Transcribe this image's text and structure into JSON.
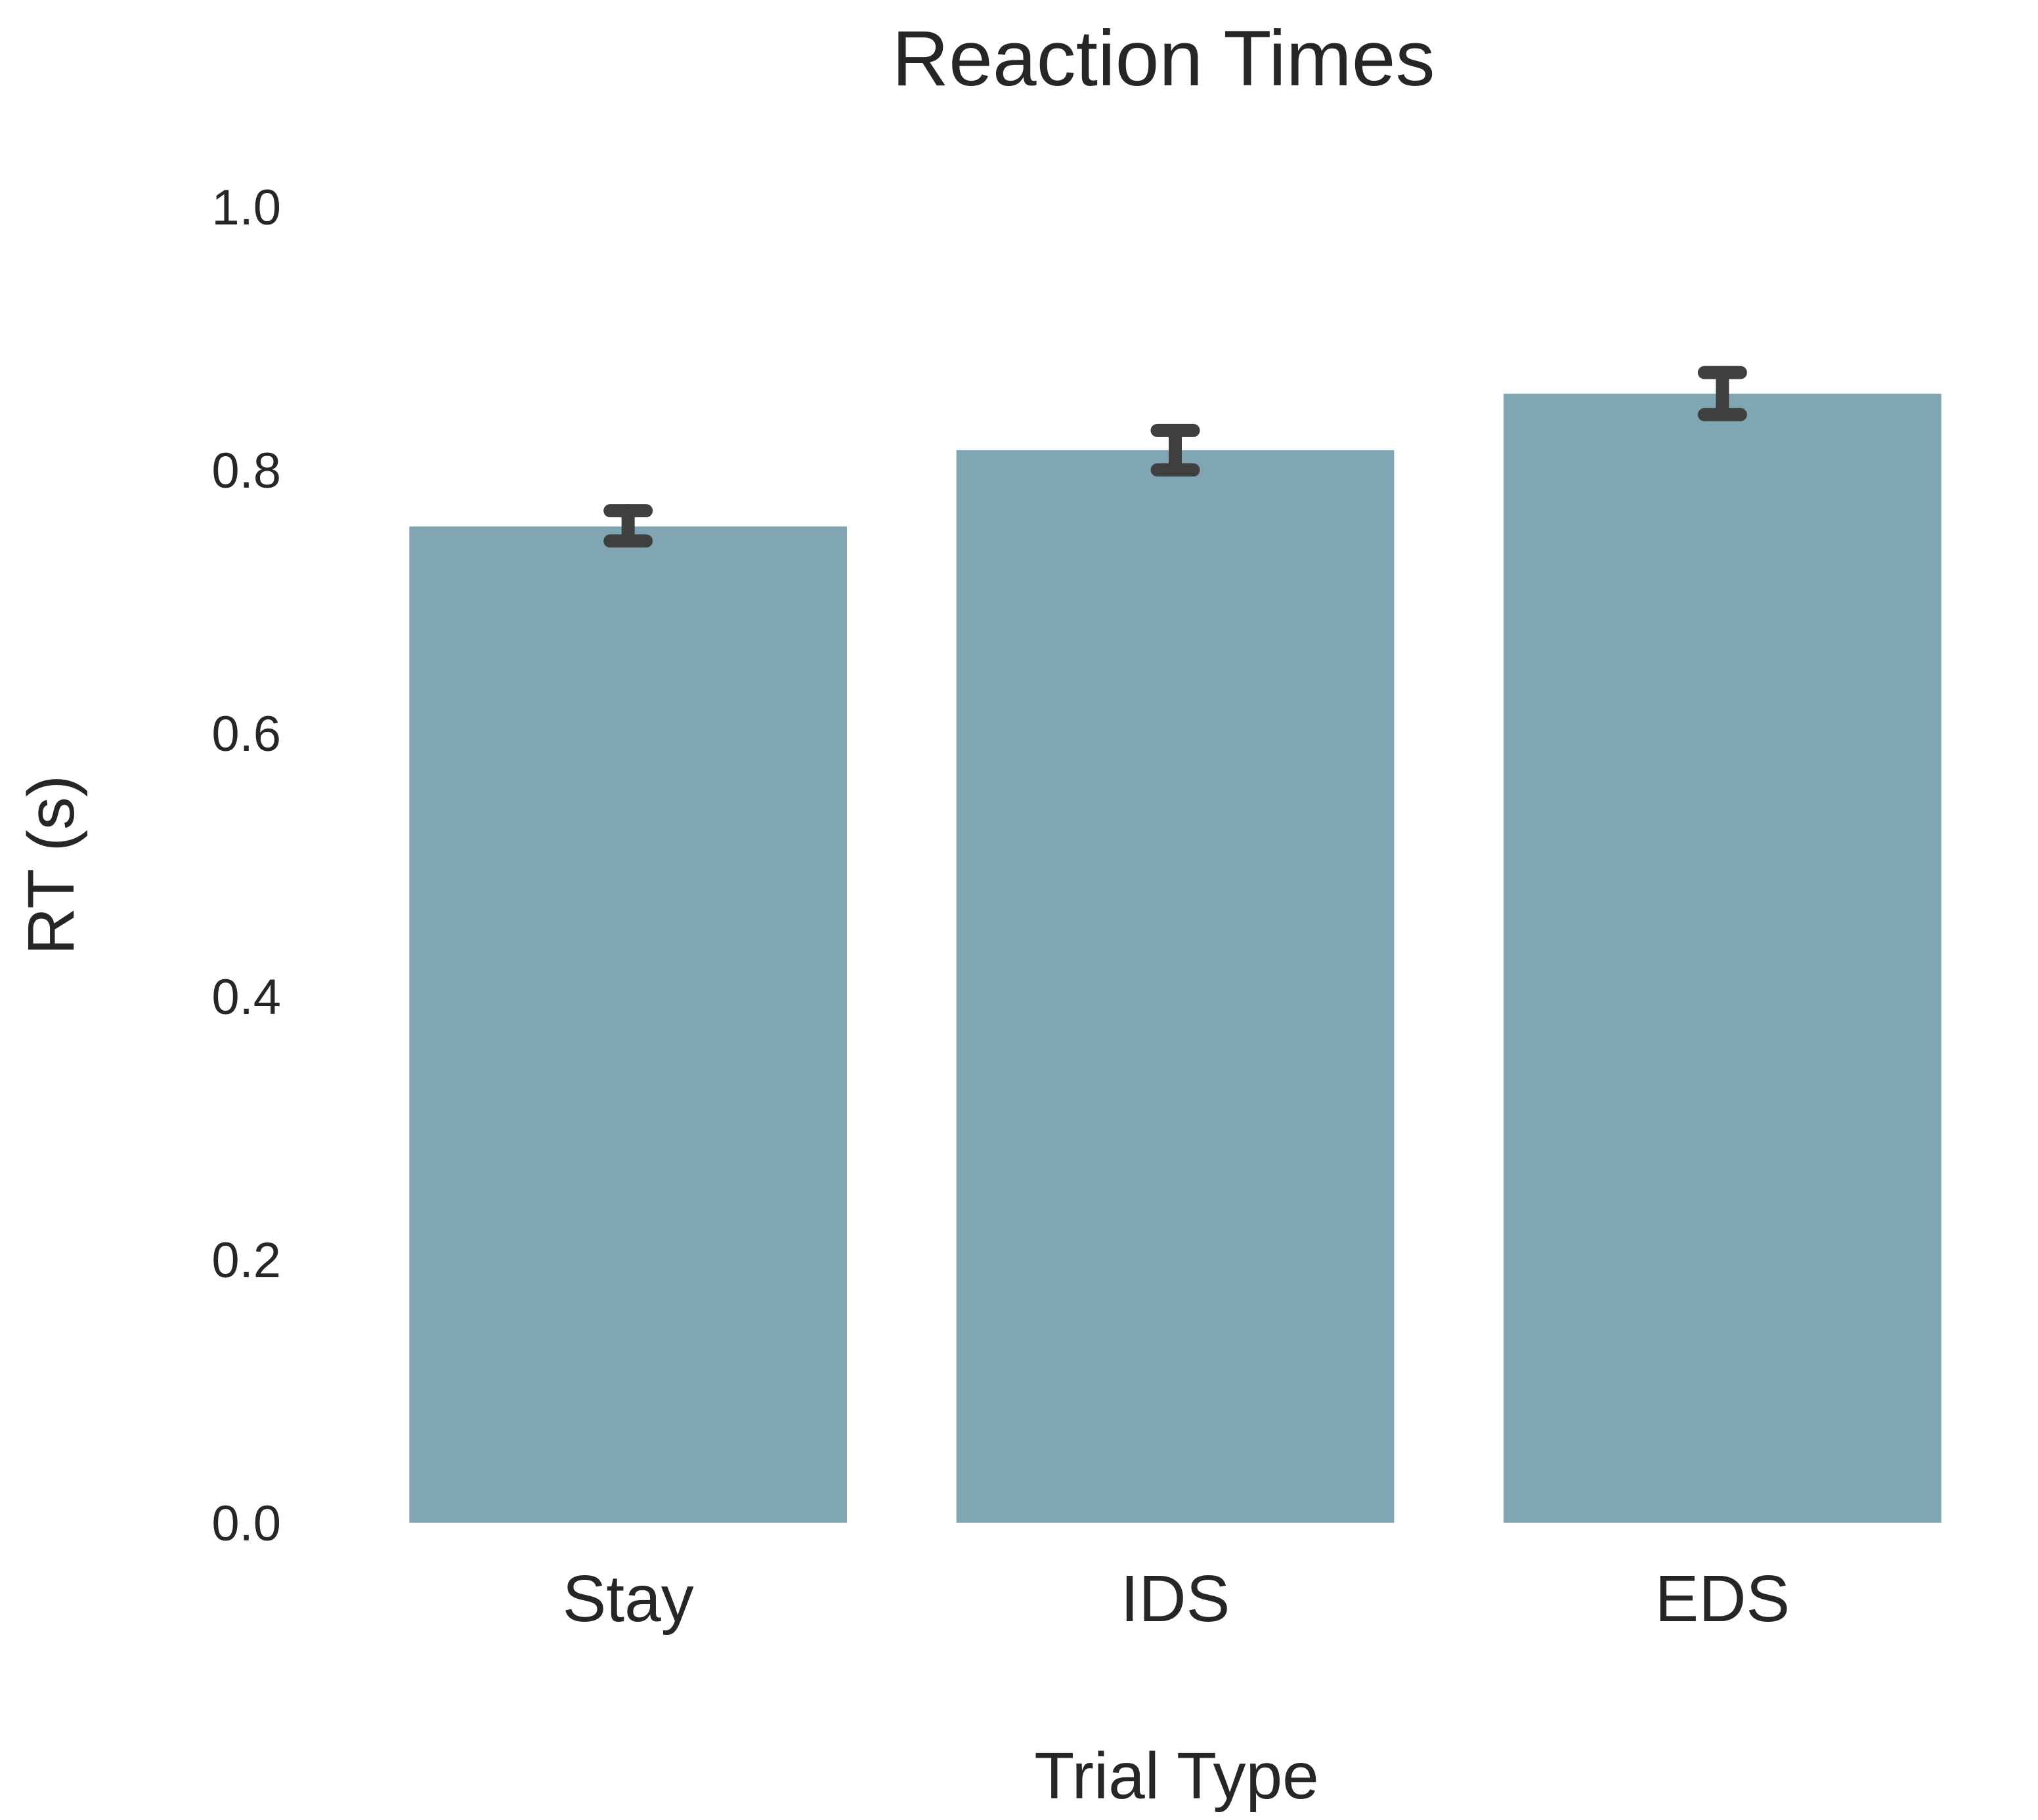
{
  "chart_data": {
    "type": "bar",
    "title": "Reaction Times",
    "xlabel": "Trial Type",
    "ylabel": "RT (s)",
    "categories": [
      "Stay",
      "IDS",
      "EDS"
    ],
    "values": [
      0.757,
      0.815,
      0.858
    ],
    "error_bars": [
      {
        "low": 0.746,
        "high": 0.769
      },
      {
        "low": 0.8,
        "high": 0.83
      },
      {
        "low": 0.842,
        "high": 0.874
      }
    ],
    "ylim": [
      0,
      1.0
    ],
    "yticks": [
      "0.0",
      "0.2",
      "0.4",
      "0.6",
      "0.8",
      "1.0"
    ],
    "grid": false,
    "colors": {
      "bar": "#80a6b4",
      "error": "#3f3f3f",
      "text": "#262626"
    }
  }
}
